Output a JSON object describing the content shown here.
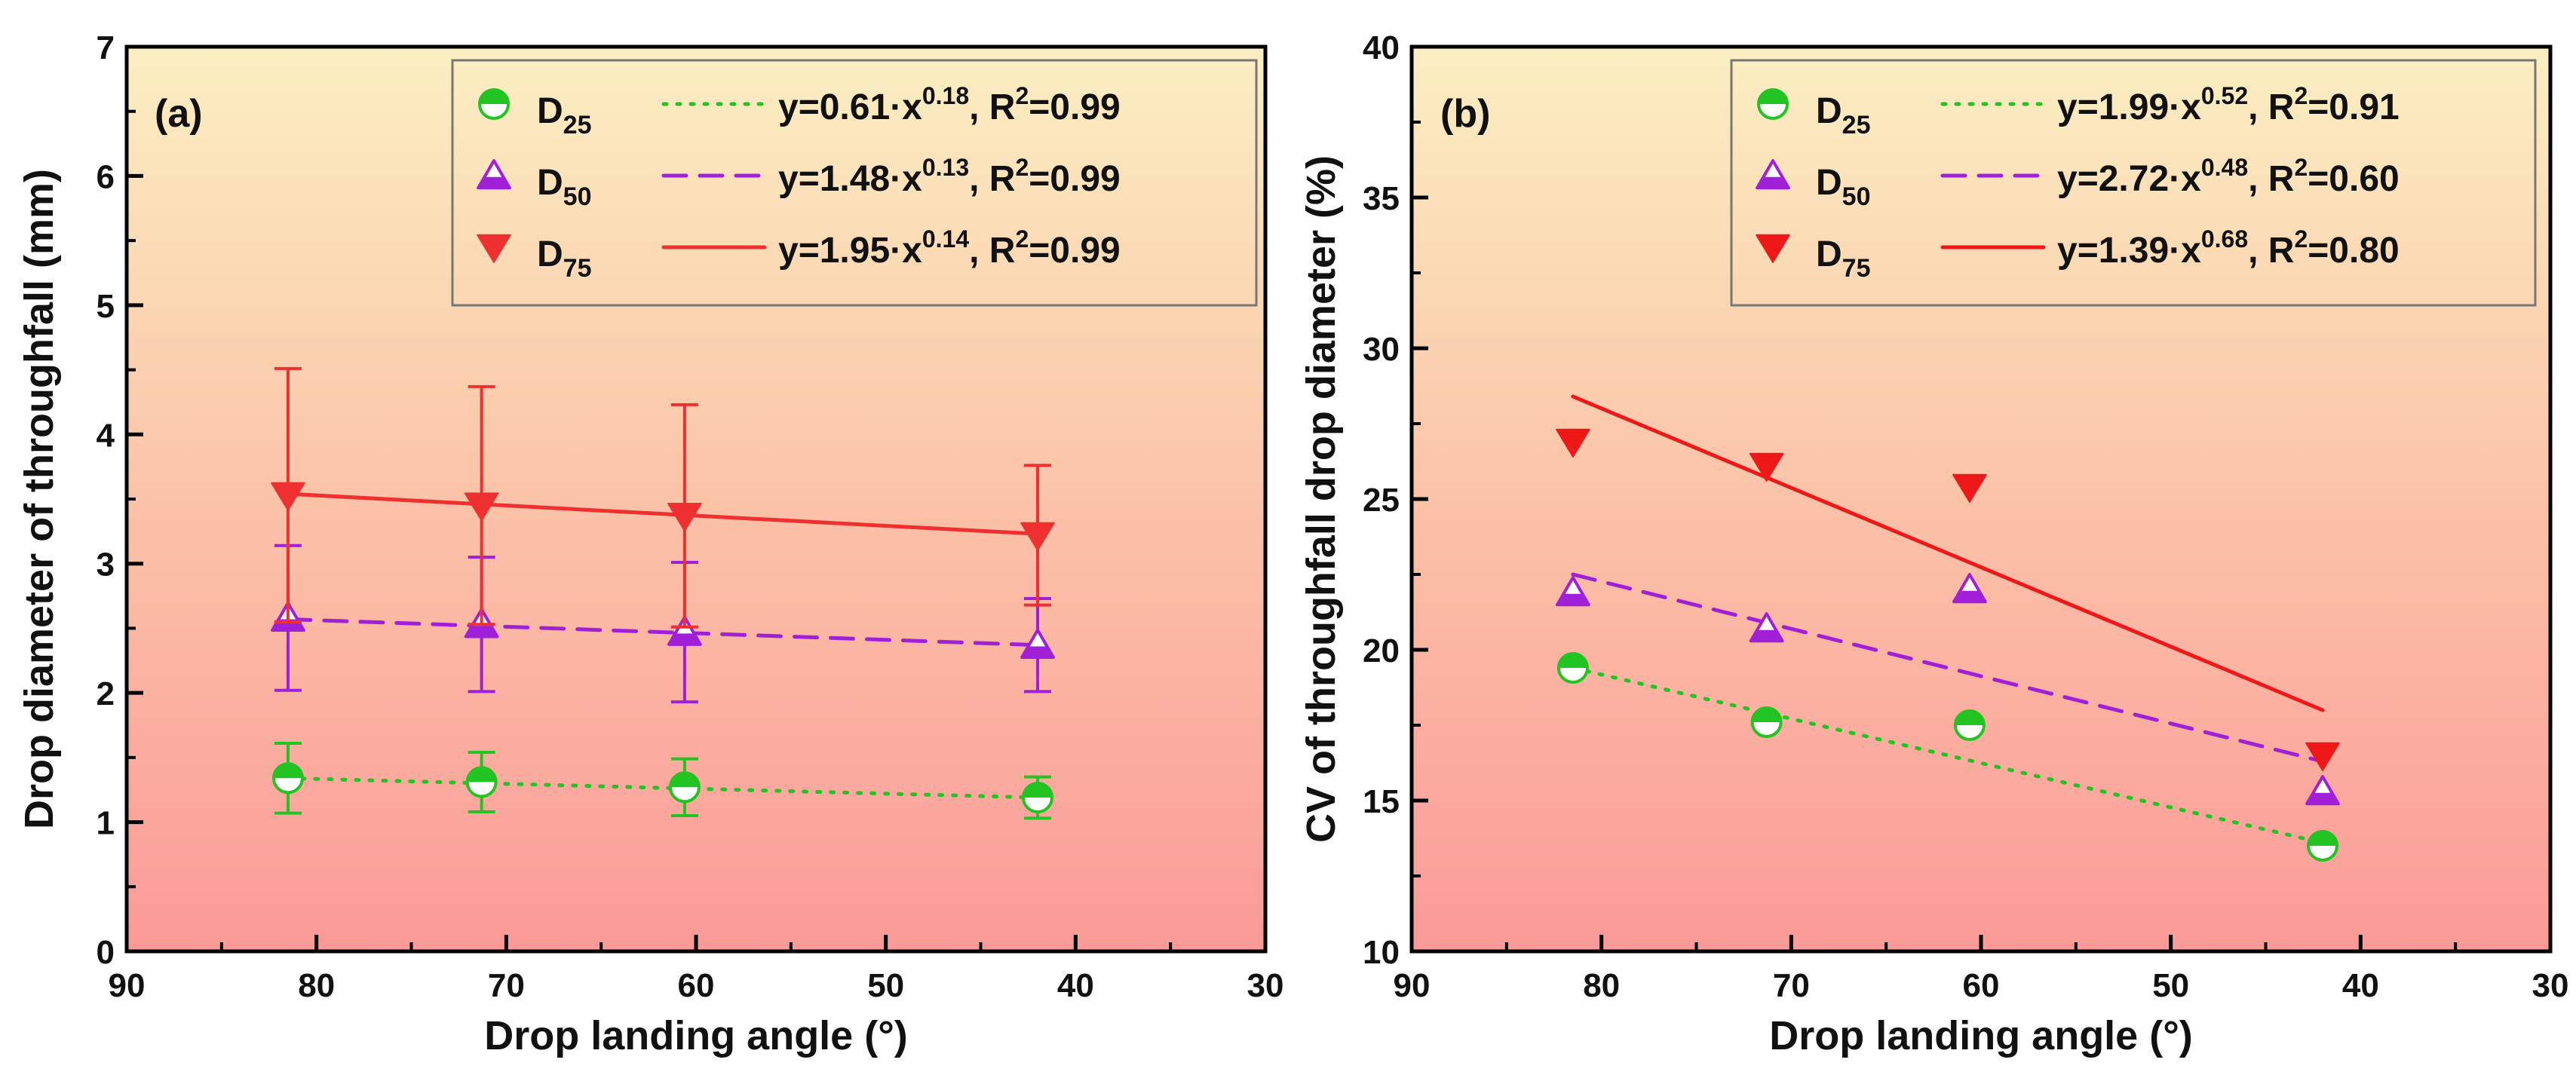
{
  "chart_data": [
    {
      "panel": "(a)",
      "type": "scatter",
      "xlabel": "Drop landing angle (°)",
      "ylabel": "Drop diameter of throughfall (mm)",
      "xlim": [
        90,
        30
      ],
      "ylim": [
        0,
        7
      ],
      "xticks": [
        90,
        80,
        70,
        60,
        50,
        40,
        30
      ],
      "yticks": [
        0,
        1,
        2,
        3,
        4,
        5,
        6,
        7
      ],
      "legend_position": "top-right",
      "series": [
        {
          "name": "D",
          "sub": "25",
          "marker": "half-circle",
          "color": "#22c422",
          "line_style": "dotted",
          "fit": "y=0.61·x",
          "fit_exp": "0.18",
          "r2": ", R",
          "r2_sup": "2",
          "r2_val": "=0.99",
          "points": [
            {
              "x": 81.5,
              "y": 1.34,
              "err": 0.27
            },
            {
              "x": 71.3,
              "y": 1.31,
              "err": 0.23
            },
            {
              "x": 60.6,
              "y": 1.27,
              "err": 0.22
            },
            {
              "x": 42.0,
              "y": 1.19,
              "err": 0.16
            }
          ],
          "fit_line": [
            {
              "x": 81.5,
              "y": 1.34
            },
            {
              "x": 42.0,
              "y": 1.19
            }
          ]
        },
        {
          "name": "D",
          "sub": "50",
          "marker": "half-triangle-up",
          "color": "#a020d8",
          "line_style": "dashed",
          "fit": "y=1.48·x",
          "fit_exp": "0.13",
          "r2": ", R",
          "r2_sup": "2",
          "r2_val": "=0.99",
          "points": [
            {
              "x": 81.5,
              "y": 2.58,
              "err": 0.56
            },
            {
              "x": 71.3,
              "y": 2.53,
              "err": 0.52
            },
            {
              "x": 60.6,
              "y": 2.47,
              "err": 0.54
            },
            {
              "x": 42.0,
              "y": 2.37,
              "err": 0.36
            }
          ],
          "fit_line": [
            {
              "x": 81.5,
              "y": 2.57
            },
            {
              "x": 42.0,
              "y": 2.37
            }
          ]
        },
        {
          "name": "D",
          "sub": "75",
          "marker": "triangle-down",
          "color": "#ee3030",
          "line_style": "solid",
          "fit": "y=1.95·x",
          "fit_exp": "0.14",
          "r2": ", R",
          "r2_sup": "2",
          "r2_val": "=0.99",
          "points": [
            {
              "x": 81.5,
              "y": 3.53,
              "err": 0.98
            },
            {
              "x": 71.3,
              "y": 3.45,
              "err": 0.92
            },
            {
              "x": 60.6,
              "y": 3.37,
              "err": 0.86
            },
            {
              "x": 42.0,
              "y": 3.22,
              "err": 0.54
            }
          ],
          "fit_line": [
            {
              "x": 81.5,
              "y": 3.54
            },
            {
              "x": 42.0,
              "y": 3.23
            }
          ]
        }
      ]
    },
    {
      "panel": "(b)",
      "type": "scatter",
      "xlabel": "Drop landing angle (°)",
      "ylabel": "CV of throughfall drop diameter (%)",
      "xlim": [
        90,
        30
      ],
      "ylim": [
        10,
        40
      ],
      "xticks": [
        90,
        80,
        70,
        60,
        50,
        40,
        30
      ],
      "yticks": [
        10,
        15,
        20,
        25,
        30,
        35,
        40
      ],
      "legend_position": "top-right",
      "series": [
        {
          "name": "D",
          "sub": "25",
          "marker": "half-circle",
          "color": "#22c422",
          "line_style": "dotted",
          "fit": "y=1.99·x",
          "fit_exp": "0.52",
          "r2": ", R",
          "r2_sup": "2",
          "r2_val": "=0.91",
          "points": [
            {
              "x": 81.5,
              "y": 19.4
            },
            {
              "x": 71.3,
              "y": 17.6
            },
            {
              "x": 60.6,
              "y": 17.5
            },
            {
              "x": 42.0,
              "y": 13.5
            }
          ],
          "fit_line": [
            {
              "x": 81.5,
              "y": 19.4
            },
            {
              "x": 42.0,
              "y": 13.6
            }
          ]
        },
        {
          "name": "D",
          "sub": "50",
          "marker": "half-triangle-up",
          "color": "#a020d8",
          "line_style": "dashed",
          "fit": "y=2.72·x",
          "fit_exp": "0.48",
          "r2": ", R",
          "r2_sup": "2",
          "r2_val": "=0.60",
          "points": [
            {
              "x": 81.5,
              "y": 21.9
            },
            {
              "x": 71.3,
              "y": 20.7
            },
            {
              "x": 60.6,
              "y": 22.0
            },
            {
              "x": 42.0,
              "y": 15.3
            }
          ],
          "fit_line": [
            {
              "x": 81.5,
              "y": 22.5
            },
            {
              "x": 42.0,
              "y": 16.3
            }
          ]
        },
        {
          "name": "D",
          "sub": "75",
          "marker": "triangle-down",
          "color": "#ee1818",
          "line_style": "solid",
          "fit": "y=1.39·x",
          "fit_exp": "0.68",
          "r2": ", R",
          "r2_sup": "2",
          "r2_val": "=0.80",
          "points": [
            {
              "x": 81.5,
              "y": 26.9
            },
            {
              "x": 71.3,
              "y": 26.1
            },
            {
              "x": 60.6,
              "y": 25.4
            },
            {
              "x": 42.0,
              "y": 16.5
            }
          ],
          "fit_line": [
            {
              "x": 81.5,
              "y": 28.4
            },
            {
              "x": 42.0,
              "y": 18.0
            }
          ]
        }
      ]
    }
  ]
}
